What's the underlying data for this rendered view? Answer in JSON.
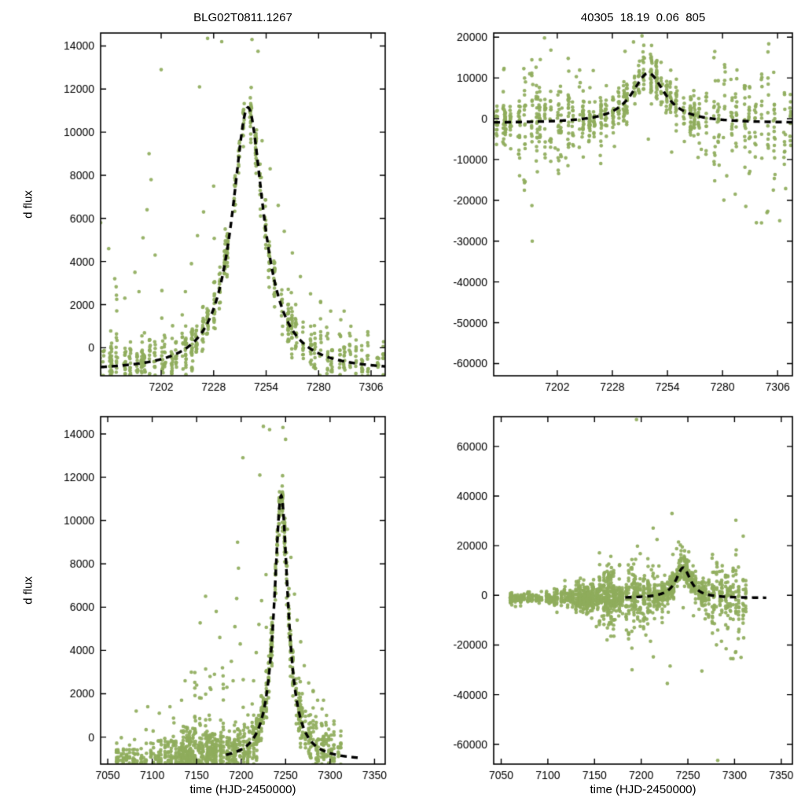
{
  "figure": {
    "background": "#ffffff",
    "point_color": "#8fad5c",
    "curve_color": "#000000",
    "axis_color": "#000000",
    "title_left": "BLG02T0811.1267",
    "title_right": "40305  18.19  0.06  805",
    "ylabel": "d flux",
    "xlabel": "time (HJD-2450000)"
  },
  "model": {
    "type": "lorentzian-peak",
    "t0": 7245,
    "gamma": 9.5,
    "amplitude": 12250,
    "baseline": -1100,
    "peak_flux": 11150
  },
  "chart_data": [
    {
      "type": "scatter",
      "panel": "top-left",
      "title": "BLG02T0811.1267",
      "xlabel": "",
      "ylabel": "d flux",
      "xlim": [
        7172,
        7313
      ],
      "ylim": [
        -1300,
        14600
      ],
      "xticks": [
        7202,
        7228,
        7254,
        7280,
        7306
      ],
      "yticks": [
        0,
        2000,
        4000,
        6000,
        8000,
        10000,
        12000,
        14000
      ],
      "grid": false,
      "legend": "none",
      "flux_column": "left",
      "curve_range": [
        7172,
        7313
      ]
    },
    {
      "type": "scatter",
      "panel": "top-right",
      "title": "40305  18.19  0.06  805",
      "xlabel": "",
      "ylabel": "",
      "xlim": [
        7172,
        7313
      ],
      "ylim": [
        -63000,
        21000
      ],
      "xticks": [
        7202,
        7228,
        7254,
        7280,
        7306
      ],
      "yticks": [
        -60000,
        -50000,
        -40000,
        -30000,
        -20000,
        -10000,
        0,
        10000,
        20000
      ],
      "grid": false,
      "legend": "none",
      "flux_column": "right",
      "curve_range": [
        7172,
        7313
      ]
    },
    {
      "type": "scatter",
      "panel": "bottom-left",
      "title": "",
      "xlabel": "time (HJD-2450000)",
      "ylabel": "d flux",
      "xlim": [
        7042,
        7362
      ],
      "ylim": [
        -1250,
        14800
      ],
      "xticks": [
        7050,
        7100,
        7150,
        7200,
        7250,
        7300,
        7350
      ],
      "yticks": [
        0,
        2000,
        4000,
        6000,
        8000,
        10000,
        12000,
        14000
      ],
      "grid": false,
      "legend": "none",
      "flux_column": "left",
      "curve_range": [
        7183,
        7334
      ]
    },
    {
      "type": "scatter",
      "panel": "bottom-right",
      "title": "",
      "xlabel": "time (HJD-2450000)",
      "ylabel": "",
      "xlim": [
        7042,
        7362
      ],
      "ylim": [
        -68000,
        72000
      ],
      "xticks": [
        7050,
        7100,
        7150,
        7200,
        7250,
        7300,
        7350
      ],
      "yticks": [
        -60000,
        -40000,
        -20000,
        0,
        20000,
        40000,
        60000
      ],
      "grid": false,
      "legend": "none",
      "flux_column": "right",
      "curve_range": [
        7183,
        7334
      ]
    }
  ],
  "generation": {
    "seed": 1267,
    "point_radius": 2.3,
    "segments": [
      {
        "t1": 7058,
        "t2": 7076,
        "epochs": 6,
        "nmin": 8,
        "nmax": 16,
        "sl": 420,
        "sr": 1100,
        "mp": 0.1,
        "mult": 1.6
      },
      {
        "t1": 7076,
        "t2": 7106,
        "epochs": 9,
        "nmin": 5,
        "nmax": 12,
        "sl": 400,
        "sr": 1000,
        "mp": 0.1,
        "mult": 1.5
      },
      {
        "t1": 7106,
        "t2": 7132,
        "epochs": 8,
        "nmin": 8,
        "nmax": 20,
        "sl": 480,
        "sr": 1500,
        "mp": 0.12,
        "mult": 1.8
      },
      {
        "t1": 7132,
        "t2": 7181,
        "epochs": 24,
        "nmin": 14,
        "nmax": 40,
        "sl": 650,
        "sr": 2600,
        "mp": 0.2,
        "mult": 2.5
      },
      {
        "t1": 7183,
        "t2": 7216,
        "epochs": 13,
        "nmin": 8,
        "nmax": 24,
        "sl": 620,
        "sr": 5200,
        "mp": 0.25,
        "mult": 1.8
      },
      {
        "t1": 7216,
        "t2": 7268,
        "epochs": 20,
        "nmin": 10,
        "nmax": 28,
        "sl": 560,
        "sr": 2600,
        "mp": 0.15,
        "mult": 1.8
      },
      {
        "t1": 7268,
        "t2": 7313,
        "epochs": 15,
        "nmin": 8,
        "nmax": 20,
        "sl": 480,
        "sr": 5200,
        "mp": 0.3,
        "mult": 2.0
      }
    ],
    "outliers_left": [
      [
        7202,
        12900
      ],
      [
        7225,
        14350
      ],
      [
        7232,
        14200
      ],
      [
        7247,
        14300
      ],
      [
        7250,
        13750
      ],
      [
        7221,
        12100
      ],
      [
        7196,
        9000
      ],
      [
        7197,
        7800
      ],
      [
        7195,
        6400
      ],
      [
        7193,
        5100
      ],
      [
        7199,
        4300
      ],
      [
        7189,
        3500
      ],
      [
        7191,
        2600
      ],
      [
        7217,
        3900
      ],
      [
        7220,
        5200
      ],
      [
        7223,
        6300
      ],
      [
        7228,
        7500
      ],
      [
        7214,
        2600
      ],
      [
        7252,
        9600
      ],
      [
        7256,
        8300
      ],
      [
        7260,
        6600
      ],
      [
        7263,
        5400
      ],
      [
        7267,
        4400
      ],
      [
        7271,
        3300
      ],
      [
        7276,
        2500
      ],
      [
        7281,
        2100
      ],
      [
        7286,
        1700
      ],
      [
        7291,
        1300
      ],
      [
        7296,
        1000
      ],
      [
        7160,
        6500
      ],
      [
        7150,
        2400
      ],
      [
        7144,
        3000
      ],
      [
        7155,
        1800
      ],
      [
        7166,
        2200
      ],
      [
        7170,
        2900
      ],
      [
        7133,
        1700
      ],
      [
        7120,
        1400
      ],
      [
        7108,
        1100
      ],
      [
        7095,
        1400
      ],
      [
        7082,
        1200
      ],
      [
        7137,
        2600
      ],
      [
        7172,
        5800
      ],
      [
        7176,
        4600
      ],
      [
        7179,
        3200
      ],
      [
        7184,
        2300
      ],
      [
        7208,
        -2100
      ],
      [
        7235,
        -1600
      ],
      [
        7260,
        -1800
      ],
      [
        7300,
        -1900
      ]
    ],
    "outliers_right": [
      [
        7240,
        21500
      ],
      [
        7242,
        20300
      ],
      [
        7238,
        18800
      ],
      [
        7234,
        16500
      ],
      [
        7246,
        15800
      ],
      [
        7251,
        13800
      ],
      [
        7196,
        19800
      ],
      [
        7199,
        16800
      ],
      [
        7194,
        14500
      ],
      [
        7192,
        12600
      ],
      [
        7189,
        11000
      ],
      [
        7187,
        9000
      ],
      [
        7219,
        11800
      ],
      [
        7211,
        10300
      ],
      [
        7282,
        -14000
      ],
      [
        7286,
        -18500
      ],
      [
        7291,
        -21500
      ],
      [
        7296,
        -25500
      ],
      [
        7301,
        -23000
      ],
      [
        7304,
        -17500
      ],
      [
        7307,
        -25000
      ],
      [
        7309,
        -9500
      ],
      [
        7256,
        -8200
      ],
      [
        7206,
        -9600
      ],
      [
        7201,
        -7200
      ],
      [
        7229,
        -6800
      ],
      [
        7262,
        -5600
      ],
      [
        7270,
        -7500
      ],
      [
        7276,
        -10500
      ],
      [
        7245,
        -5000
      ]
    ],
    "outliers_right_bottom": [
      [
        7195,
        70800
      ],
      [
        7233,
        33000
      ],
      [
        7217,
        22500
      ],
      [
        7244,
        19500
      ],
      [
        7251,
        17500
      ],
      [
        7228,
        -35500
      ],
      [
        7231,
        -28500
      ],
      [
        7213,
        -24800
      ],
      [
        7210,
        -18500
      ],
      [
        7265,
        -30500
      ],
      [
        7152,
        -12600
      ],
      [
        7147,
        -9200
      ],
      [
        7158,
        -8400
      ],
      [
        7166,
        -11000
      ],
      [
        7143,
        -7000
      ],
      [
        7190,
        -14500
      ],
      [
        7199,
        -12500
      ],
      [
        7205,
        -16000
      ],
      [
        7282,
        -66500
      ],
      [
        7172,
        -9800
      ],
      [
        7176,
        -8300
      ],
      [
        7161,
        9200
      ],
      [
        7155,
        7400
      ],
      [
        7149,
        6300
      ]
    ]
  }
}
